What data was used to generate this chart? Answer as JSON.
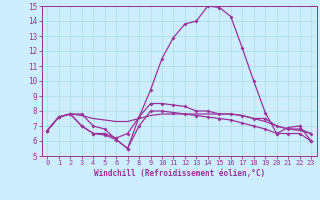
{
  "x": [
    0,
    1,
    2,
    3,
    4,
    5,
    6,
    7,
    8,
    9,
    10,
    11,
    12,
    13,
    14,
    15,
    16,
    17,
    18,
    19,
    20,
    21,
    22,
    23
  ],
  "line1": [
    6.7,
    7.6,
    7.8,
    7.8,
    7.0,
    6.8,
    6.1,
    5.5,
    7.6,
    9.4,
    11.5,
    12.9,
    13.8,
    14.0,
    15.0,
    14.9,
    14.3,
    12.2,
    10.0,
    7.9,
    6.5,
    6.9,
    7.0,
    6.0
  ],
  "line2": [
    6.7,
    7.6,
    7.8,
    7.7,
    7.5,
    7.4,
    7.3,
    7.3,
    7.5,
    7.7,
    7.8,
    7.8,
    7.8,
    7.8,
    7.8,
    7.8,
    7.8,
    7.7,
    7.5,
    7.3,
    7.0,
    6.8,
    6.7,
    6.5
  ],
  "line3": [
    6.7,
    7.6,
    7.8,
    7.0,
    6.5,
    6.5,
    6.2,
    6.5,
    7.6,
    8.5,
    8.5,
    8.4,
    8.3,
    8.0,
    8.0,
    7.8,
    7.8,
    7.7,
    7.5,
    7.5,
    7.0,
    6.8,
    6.8,
    6.5
  ],
  "line4": [
    6.7,
    7.6,
    7.8,
    7.0,
    6.5,
    6.4,
    6.1,
    5.5,
    7.0,
    8.0,
    8.0,
    7.9,
    7.8,
    7.7,
    7.6,
    7.5,
    7.4,
    7.2,
    7.0,
    6.8,
    6.5,
    6.5,
    6.5,
    6.0
  ],
  "color": "#993399",
  "bg_color": "#cceeff",
  "grid_color": "#aadddd",
  "xlabel": "Windchill (Refroidissement éolien,°C)",
  "ylim": [
    5,
    15
  ],
  "xlim": [
    -0.5,
    23.5
  ],
  "yticks": [
    5,
    6,
    7,
    8,
    9,
    10,
    11,
    12,
    13,
    14,
    15
  ],
  "xticks": [
    0,
    1,
    2,
    3,
    4,
    5,
    6,
    7,
    8,
    9,
    10,
    11,
    12,
    13,
    14,
    15,
    16,
    17,
    18,
    19,
    20,
    21,
    22,
    23
  ]
}
